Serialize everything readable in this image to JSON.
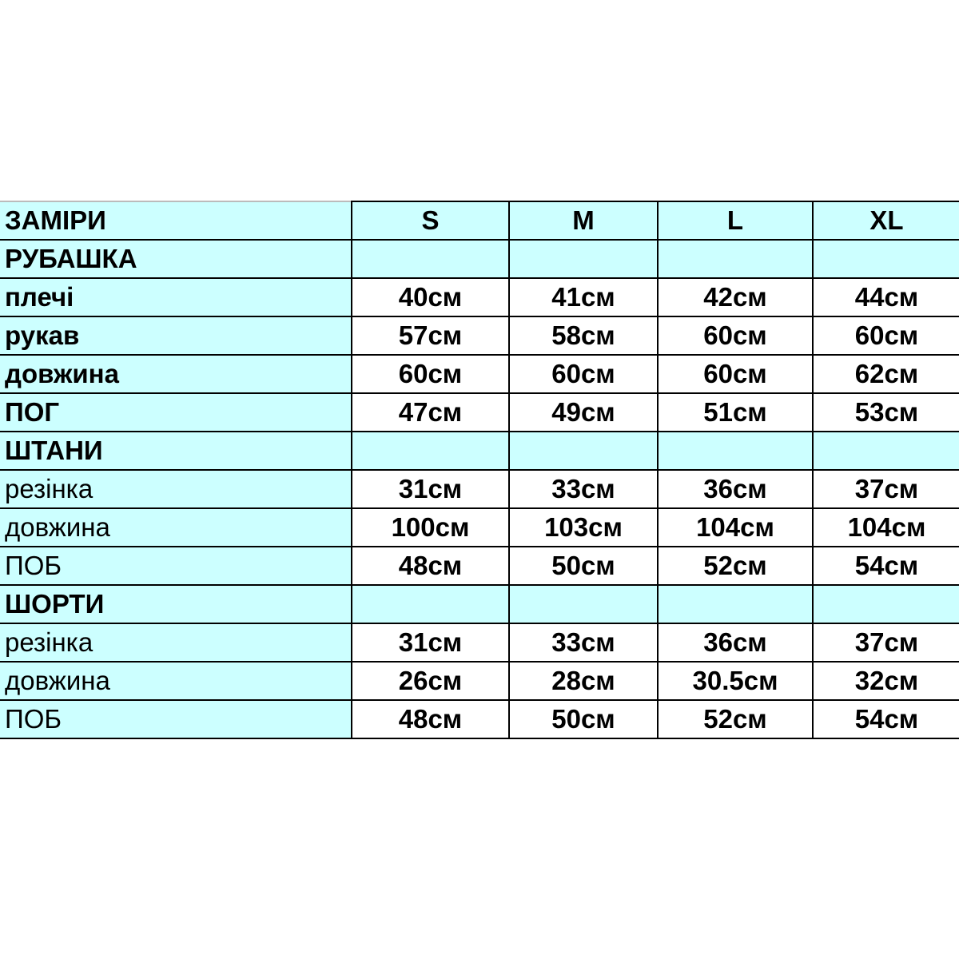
{
  "header": {
    "label": "ЗАМІРИ",
    "sizes": [
      "S",
      "M",
      "L",
      "XL"
    ]
  },
  "colors": {
    "highlight": "#ccffff",
    "border": "#000000"
  },
  "rows": [
    {
      "label": "РУБАШКА",
      "section": true,
      "values": [
        "",
        "",
        "",
        ""
      ]
    },
    {
      "label": "плечі",
      "bold": true,
      "values": [
        "40см",
        "41см",
        "42см",
        "44см"
      ]
    },
    {
      "label": "рукав",
      "bold": true,
      "values": [
        "57см",
        "58см",
        "60см",
        "60см"
      ]
    },
    {
      "label": "довжина",
      "bold": true,
      "values": [
        "60см",
        "60см",
        "60см",
        "62см"
      ]
    },
    {
      "label": "ПОГ",
      "bold": true,
      "values": [
        "47см",
        "49см",
        "51см",
        "53см"
      ]
    },
    {
      "label": "ШТАНИ",
      "section": true,
      "values": [
        "",
        "",
        "",
        ""
      ]
    },
    {
      "label": "резінка",
      "bold": false,
      "values": [
        "31см",
        "33см",
        "36см",
        "37см"
      ]
    },
    {
      "label": "довжина",
      "bold": false,
      "values": [
        "100см",
        "103см",
        "104см",
        "104см"
      ]
    },
    {
      "label": "ПОБ",
      "bold": false,
      "values": [
        "48см",
        "50см",
        "52см",
        "54см"
      ]
    },
    {
      "label": "ШОРТИ",
      "section": true,
      "values": [
        "",
        "",
        "",
        ""
      ]
    },
    {
      "label": "резінка",
      "bold": false,
      "values": [
        "31см",
        "33см",
        "36см",
        "37см"
      ]
    },
    {
      "label": "довжина",
      "bold": false,
      "values": [
        "26см",
        "28см",
        "30.5см",
        "32см"
      ]
    },
    {
      "label": "ПОБ",
      "bold": false,
      "values": [
        "48см",
        "50см",
        "52см",
        "54см"
      ]
    }
  ]
}
